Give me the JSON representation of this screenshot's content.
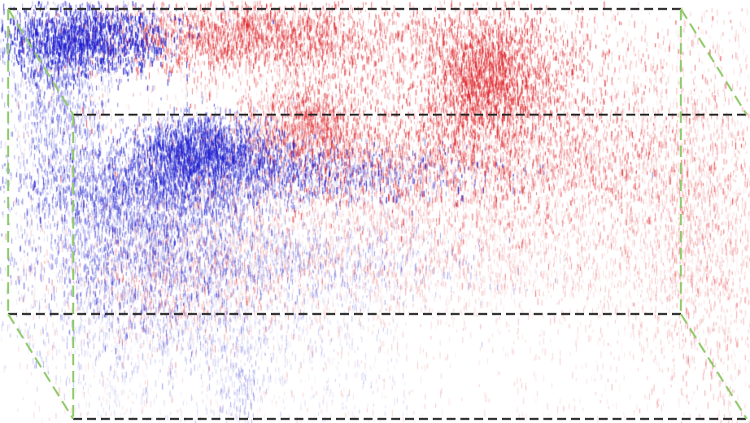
{
  "figure": {
    "kind": "3d-point-cloud-in-bounding-box",
    "background_color": "#ffffff",
    "point_colors": {
      "positive": "#e0262c",
      "negative": "#1f1fd1"
    },
    "box_edge_colors": {
      "horizontal_edges": "#2a2a2a",
      "vertical_and_depth_edges": "#8fca6a"
    },
    "box_edge_style": "dashed"
  }
}
